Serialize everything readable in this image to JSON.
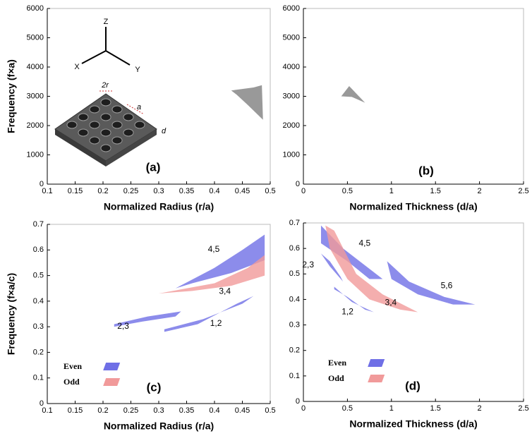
{
  "chart_data": [
    {
      "type": "region",
      "xlabel": "Normalized Radius (r/a)",
      "ylabel": "Frequency (f×a)",
      "panel_label": "(a)",
      "xlim": [
        0.1,
        0.5
      ],
      "ylim": [
        0,
        6000
      ],
      "xticks": [
        0.1,
        0.15,
        0.2,
        0.25,
        0.3,
        0.35,
        0.4,
        0.45,
        0.5
      ],
      "yticks": [
        0,
        1000,
        2000,
        3000,
        4000,
        5000,
        6000
      ],
      "inset_labels": [
        "Z",
        "X",
        "Y",
        "2r",
        "a",
        "d"
      ],
      "series": [
        {
          "color": "#808080",
          "x": [
            0.43,
            0.47,
            0.485,
            0.487,
            0.46,
            0.44
          ],
          "values": [
            3200,
            3300,
            3380,
            2200,
            2700,
            3050
          ]
        }
      ]
    },
    {
      "type": "region",
      "xlabel": "Normalized Thickness (d/a)",
      "panel_label": "(b)",
      "xlim": [
        0,
        2.5
      ],
      "ylim": [
        0,
        6000
      ],
      "xticks": [
        0,
        0.5,
        1,
        1.5,
        2,
        2.5
      ],
      "yticks": [
        0,
        1000,
        2000,
        3000,
        4000,
        5000,
        6000
      ],
      "series": [
        {
          "color": "#808080",
          "x": [
            0.43,
            0.52,
            0.7,
            0.55
          ],
          "values": [
            3000,
            3350,
            2780,
            2980
          ]
        }
      ]
    },
    {
      "type": "region",
      "xlabel": "Normalized Radius (r/a)",
      "ylabel": "Frequency (f×a/c)",
      "panel_label": "(c)",
      "xlim": [
        0.1,
        0.5
      ],
      "ylim": [
        0,
        0.7
      ],
      "xticks": [
        0.1,
        0.15,
        0.2,
        0.25,
        0.3,
        0.35,
        0.4,
        0.45,
        0.5
      ],
      "yticks": [
        0,
        0.1,
        0.2,
        0.3,
        0.4,
        0.5,
        0.6,
        0.7
      ],
      "legend": [
        {
          "name": "Even",
          "color": "#6f6fe6"
        },
        {
          "name": "Odd",
          "color": "#f19a9a"
        }
      ],
      "series": [
        {
          "label": "4,5",
          "color": "#6f6fe6",
          "label_color": "#3b3bb8",
          "x": [
            0.33,
            0.4,
            0.45,
            0.49,
            0.49,
            0.43,
            0.36
          ],
          "values": [
            0.45,
            0.53,
            0.6,
            0.66,
            0.56,
            0.51,
            0.47
          ]
        },
        {
          "label": "3,4",
          "color": "#f19a9a",
          "label_color": "#b02020",
          "x": [
            0.3,
            0.4,
            0.46,
            0.49,
            0.49,
            0.43,
            0.36
          ],
          "values": [
            0.43,
            0.47,
            0.53,
            0.58,
            0.5,
            0.46,
            0.44
          ]
        },
        {
          "label": "2,3",
          "color": "#6f6fe6",
          "label_color": "#3b3bb8",
          "x": [
            0.22,
            0.28,
            0.34,
            0.33,
            0.27,
            0.22
          ],
          "values": [
            0.31,
            0.34,
            0.36,
            0.34,
            0.32,
            0.3
          ]
        },
        {
          "label": "1,2",
          "color": "#6f6fe6",
          "label_color": "#3b3bb8",
          "x": [
            0.31,
            0.38,
            0.45,
            0.47,
            0.44,
            0.37,
            0.31
          ],
          "values": [
            0.29,
            0.33,
            0.39,
            0.42,
            0.39,
            0.31,
            0.28
          ]
        }
      ]
    },
    {
      "type": "region",
      "xlabel": "Normalized Thickness (d/a)",
      "panel_label": "(d)",
      "xlim": [
        0,
        2.5
      ],
      "ylim": [
        0,
        0.7
      ],
      "xticks": [
        0,
        0.5,
        1,
        1.5,
        2,
        2.5
      ],
      "yticks": [
        0,
        0.1,
        0.2,
        0.3,
        0.4,
        0.5,
        0.6,
        0.7
      ],
      "legend": [
        {
          "name": "Even",
          "color": "#6f6fe6"
        },
        {
          "name": "Odd",
          "color": "#f19a9a"
        }
      ],
      "series": [
        {
          "label": "4,5",
          "color": "#6f6fe6",
          "label_color": "#3b3bb8",
          "x": [
            0.2,
            0.45,
            0.75,
            0.9,
            0.75,
            0.5,
            0.2
          ],
          "values": [
            0.69,
            0.6,
            0.52,
            0.48,
            0.48,
            0.55,
            0.62
          ]
        },
        {
          "label": "3,4",
          "color": "#f19a9a",
          "label_color": "#b02020",
          "x": [
            0.25,
            0.35,
            0.6,
            0.9,
            1.3,
            1.1,
            0.75,
            0.5,
            0.3
          ],
          "values": [
            0.69,
            0.67,
            0.5,
            0.42,
            0.35,
            0.36,
            0.4,
            0.48,
            0.6
          ]
        },
        {
          "label": "2,3",
          "color": "#6f6fe6",
          "label_color": "#3b3bb8",
          "x": [
            0.2,
            0.3,
            0.45,
            0.42,
            0.3
          ],
          "values": [
            0.58,
            0.53,
            0.47,
            0.49,
            0.55
          ]
        },
        {
          "label": "1,2",
          "color": "#6f6fe6",
          "label_color": "#3b3bb8",
          "x": [
            0.35,
            0.55,
            0.8,
            0.7,
            0.5,
            0.35
          ],
          "values": [
            0.45,
            0.39,
            0.35,
            0.36,
            0.41,
            0.44
          ]
        },
        {
          "label": "5,6",
          "color": "#6f6fe6",
          "label_color": "#3b3bb8",
          "x": [
            0.95,
            1.2,
            1.6,
            1.95,
            1.7,
            1.3,
            1.0
          ],
          "values": [
            0.55,
            0.47,
            0.41,
            0.38,
            0.38,
            0.42,
            0.48
          ]
        }
      ]
    }
  ]
}
